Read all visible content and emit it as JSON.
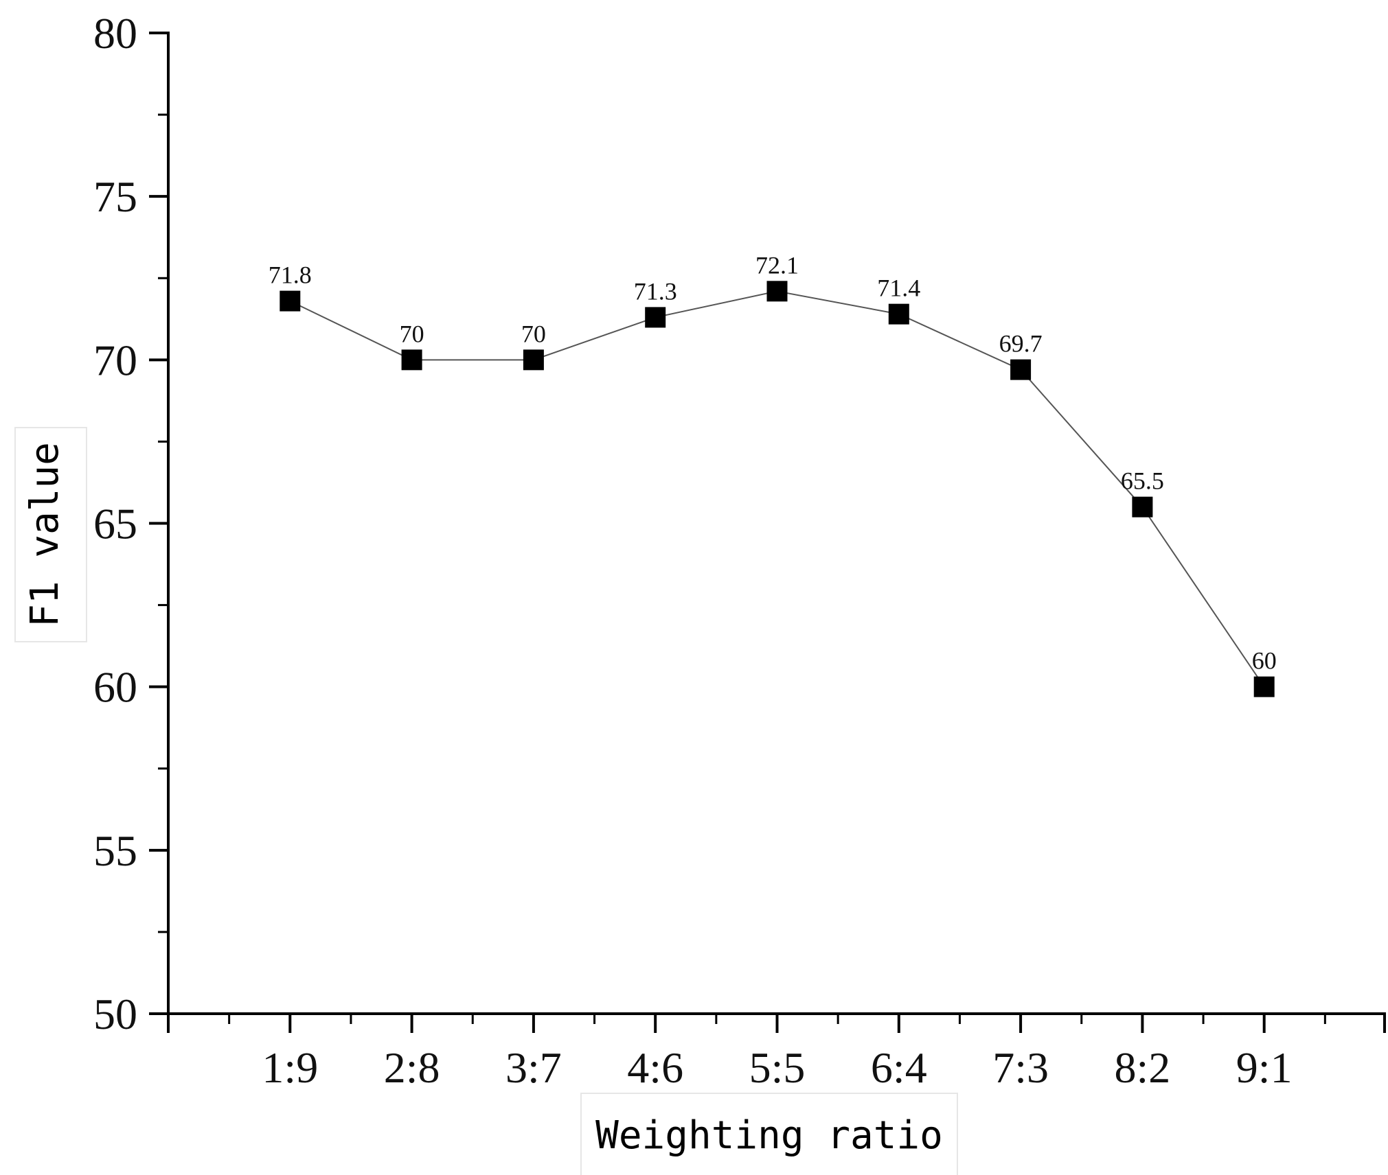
{
  "chart_data": {
    "type": "line",
    "title": "",
    "xlabel": "Weighting ratio",
    "ylabel": "F1 value",
    "categories": [
      "1:9",
      "2:8",
      "3:7",
      "4:6",
      "5:5",
      "6:4",
      "7:3",
      "8:2",
      "9:1"
    ],
    "series": [
      {
        "name": "F1 value",
        "values": [
          71.8,
          70,
          70,
          71.3,
          72.1,
          71.4,
          69.7,
          65.5,
          60
        ],
        "labels": [
          "71.8",
          "70",
          "70",
          "71.3",
          "72.1",
          "71.4",
          "69.7",
          "65.5",
          "60"
        ],
        "marker": "square",
        "color": "#000000",
        "line_color": "#555555"
      }
    ],
    "ylim": [
      50,
      80
    ],
    "yticks": [
      50,
      55,
      60,
      65,
      70,
      75,
      80
    ],
    "ytick_labels": [
      "50",
      "55",
      "60",
      "65",
      "70",
      "75",
      "80"
    ],
    "grid": false,
    "legend": "none"
  }
}
